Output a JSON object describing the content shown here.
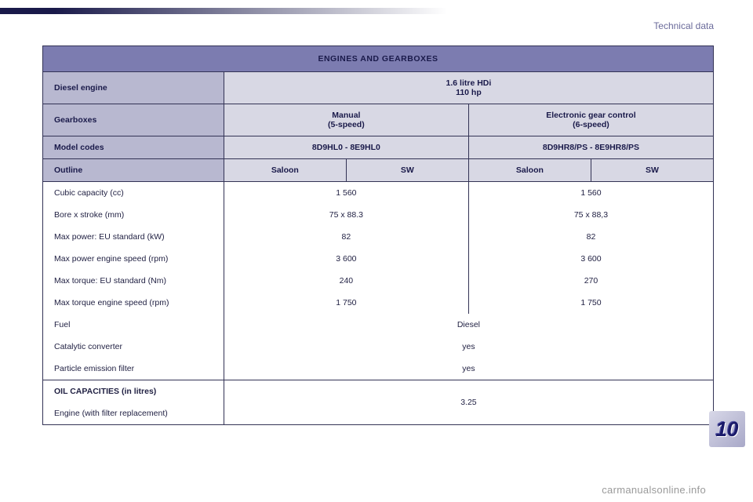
{
  "header": {
    "section": "Technical data"
  },
  "table": {
    "title": "ENGINES AND GEARBOXES",
    "row_engine_label": "Diesel engine",
    "row_engine_value_line1": "1.6 litre HDi",
    "row_engine_value_line2": "110 hp",
    "row_gearbox_label": "Gearboxes",
    "row_gearbox_manual_line1": "Manual",
    "row_gearbox_manual_line2": "(5-speed)",
    "row_gearbox_egc_line1": "Electronic gear control",
    "row_gearbox_egc_line2": "(6-speed)",
    "row_model_label": "Model codes",
    "row_model_manual": "8D9HL0 - 8E9HL0",
    "row_model_egc": "8D9HR8/PS - 8E9HR8/PS",
    "row_outline_label": "Outline",
    "row_outline_saloon": "Saloon",
    "row_outline_sw": "SW",
    "specs": [
      {
        "label": "Cubic capacity (cc)",
        "manual": "1 560",
        "egc": "1 560"
      },
      {
        "label": "Bore x stroke (mm)",
        "manual": "75 x 88.3",
        "egc": "75 x 88,3"
      },
      {
        "label": "Max power: EU standard (kW)",
        "manual": "82",
        "egc": "82"
      },
      {
        "label": "Max power engine speed (rpm)",
        "manual": "3 600",
        "egc": "3 600"
      },
      {
        "label": "Max torque: EU standard (Nm)",
        "manual": "240",
        "egc": "270"
      },
      {
        "label": "Max torque engine speed (rpm)",
        "manual": "1 750",
        "egc": "1 750"
      }
    ],
    "fuel_label": "Fuel",
    "fuel_value": "Diesel",
    "cat_label": "Catalytic converter",
    "cat_value": "yes",
    "pef_label": "Particle emission filter",
    "pef_value": "yes",
    "oil_title": "OIL CAPACITIES (in litres)",
    "oil_label": "Engine (with filter replacement)",
    "oil_value": "3.25"
  },
  "sidetab": {
    "number": "10"
  },
  "footer": {
    "text": "carmanualsonline.info"
  },
  "style": {
    "colors": {
      "title_bg": "#7c7cb0",
      "hdr_label_bg": "#b8b8d0",
      "hdr_val_bg": "#d8d8e4",
      "border": "#333355",
      "text_dark": "#1a1a4a"
    }
  }
}
